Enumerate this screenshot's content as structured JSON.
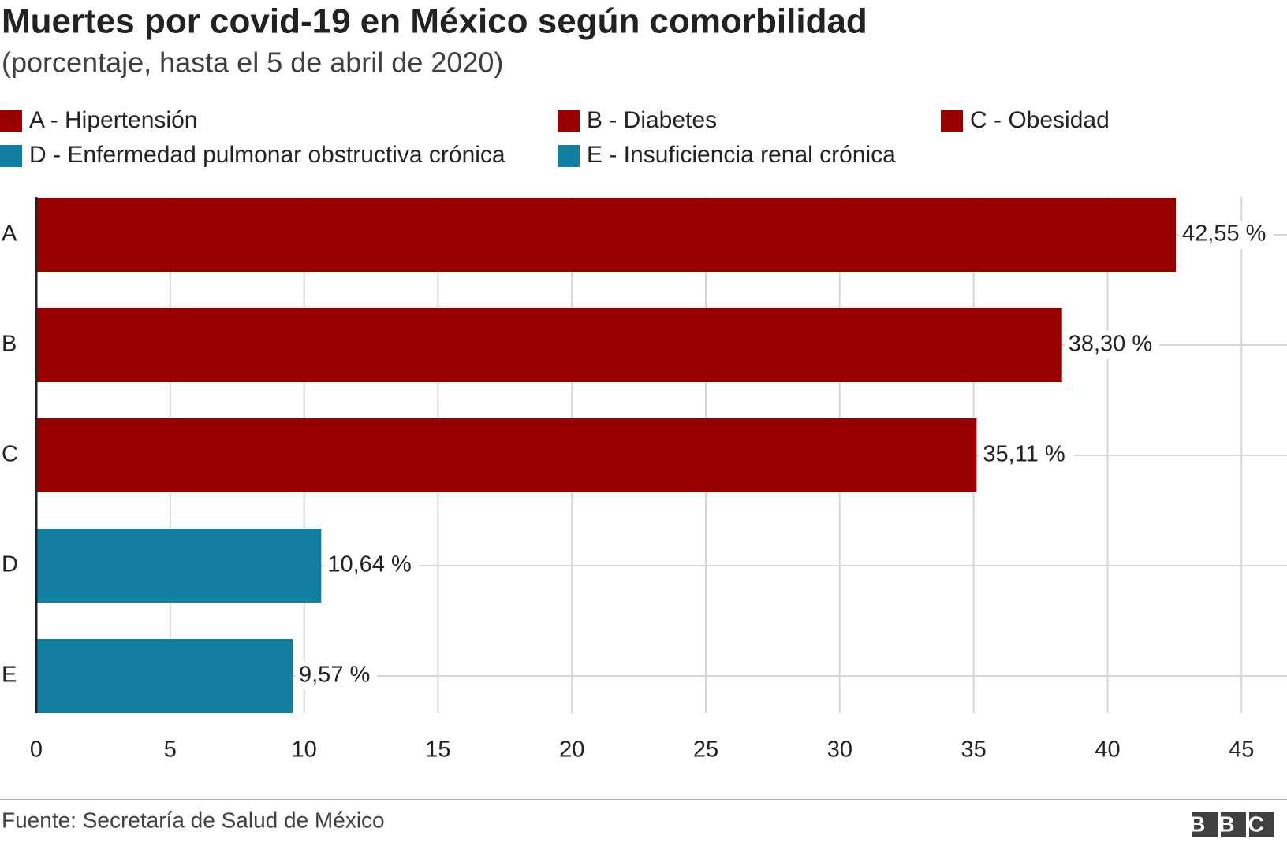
{
  "chart_data": {
    "type": "bar",
    "orientation": "horizontal",
    "title": "Muertes por covid-19 en México según comorbilidad",
    "subtitle": "(porcentaje, hasta el 5 de abril de 2020)",
    "legend": [
      {
        "name": "A - Hipertensión",
        "color": "#990000"
      },
      {
        "name": "B - Diabetes",
        "color": "#990000"
      },
      {
        "name": "C - Obesidad",
        "color": "#990000"
      },
      {
        "name": "D - Enfermedad pulmonar obstructiva crónica",
        "color": "#1380A1"
      },
      {
        "name": "E - Insuficiencia renal crónica",
        "color": "#1380A1"
      }
    ],
    "categories": [
      "A",
      "B",
      "C",
      "D",
      "E"
    ],
    "values": [
      42.55,
      38.3,
      35.11,
      10.64,
      9.57
    ],
    "value_labels": [
      "42,55 %",
      "38,30 %",
      "35,11 %",
      "10,64 %",
      "9,57 %"
    ],
    "colors": [
      "#990000",
      "#990000",
      "#990000",
      "#1380A1",
      "#1380A1"
    ],
    "xlim": [
      0,
      46.7
    ],
    "xticks": [
      0,
      5,
      10,
      15,
      20,
      25,
      30,
      35,
      40,
      45
    ],
    "grid": true,
    "source": "Fuente: Secretaría de Salud de México",
    "logo": "BBC"
  }
}
